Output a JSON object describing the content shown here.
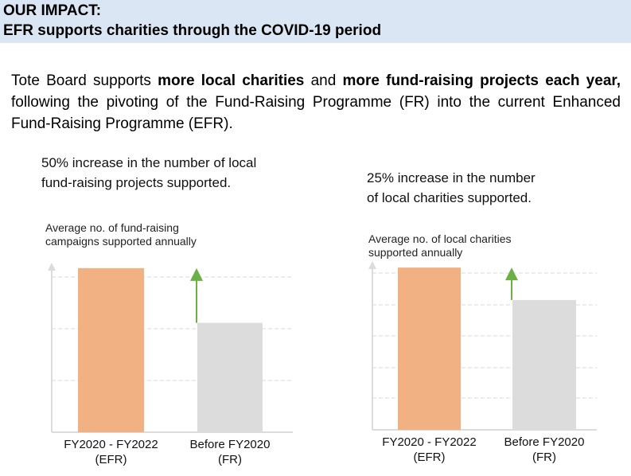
{
  "header": {
    "line1": "OUR IMPACT:",
    "line2": "EFR supports charities through the COVID-19 period"
  },
  "intro": {
    "t1": "Tote Board supports ",
    "b1": "more local charities",
    "t2": " and ",
    "b2": "more fund-raising projects each year,",
    "t3": " following the pivoting of the Fund-Raising Programme (FR) into the current Enhanced Fund-Raising Programme (EFR)."
  },
  "captions": {
    "left": [
      "50% increase in the number of local",
      "fund-raising projects supported."
    ],
    "right": [
      "25% increase in the number",
      "of local charities supported."
    ]
  },
  "colors": {
    "efr": "#f2b183",
    "fr": "#dcdcdc",
    "arrow": "#6ab045",
    "header_bg": "#dbe6f4",
    "grid": "#d9d9d9"
  },
  "chart_data": [
    {
      "type": "bar",
      "ylabel": [
        "Average no. of fund-raising",
        "campaigns supported annually"
      ],
      "categories": [
        [
          "FY2020 - FY2022",
          "(EFR)"
        ],
        [
          "Before FY2020",
          "(FR)"
        ]
      ],
      "values": [
        1.5,
        1.0
      ],
      "ylim": [
        0,
        1.55
      ],
      "grid": true,
      "annotation": "up-arrow"
    },
    {
      "type": "bar",
      "ylabel": [
        "Average no. of local charities",
        "supported annually"
      ],
      "categories": [
        [
          "FY2020 - FY2022",
          "(EFR)"
        ],
        [
          "Before FY2020",
          "(FR)"
        ]
      ],
      "values": [
        1.25,
        1.0
      ],
      "ylim": [
        0,
        1.3
      ],
      "grid": true,
      "annotation": "up-arrow"
    }
  ]
}
